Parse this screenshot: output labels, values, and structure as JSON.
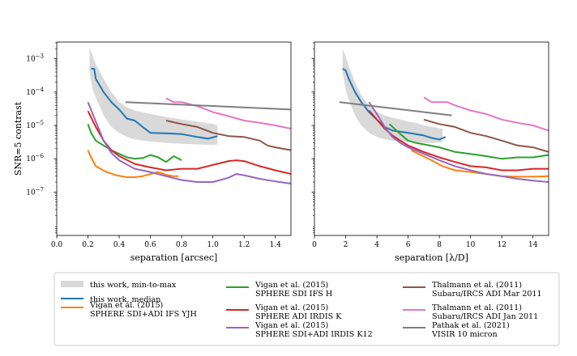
{
  "chart_data": [
    {
      "type": "line",
      "xlabel": "separation [arcsec]",
      "ylabel": "SNR=5 contrast",
      "xlim": [
        0.0,
        1.5
      ],
      "ylim_log10": [
        -8.3,
        -2.5
      ],
      "xticks": [
        0.0,
        0.2,
        0.4,
        0.6,
        0.8,
        1.0,
        1.2,
        1.4
      ],
      "xtick_labels": [
        "0.0",
        "0.2",
        "0.4",
        "0.6",
        "0.8",
        "1.0",
        "1.2",
        "1.4"
      ],
      "yticks_log10": [
        -7,
        -6,
        -5,
        -4,
        -3
      ],
      "ytick_labels": [
        "10−7",
        "10−6",
        "10−5",
        "10−4",
        "10−3"
      ],
      "band": {
        "name": "this work, min-to-max",
        "x": [
          0.21,
          0.23,
          0.25,
          0.3,
          0.35,
          0.4,
          0.45,
          0.5,
          0.55,
          0.6,
          0.7,
          0.8,
          0.9,
          1.0,
          1.03
        ],
        "upper": [
          0.0022,
          0.0012,
          0.0007,
          0.00025,
          0.0001,
          5e-05,
          3.5e-05,
          2.8e-05,
          2.5e-05,
          2.2e-05,
          1.8e-05,
          1.5e-05,
          1.3e-05,
          1.1e-05,
          1e-05
        ],
        "lower": [
          0.0004,
          0.00012,
          7e-05,
          2e-05,
          9e-06,
          6e-06,
          4.5e-06,
          3.8e-06,
          3.5e-06,
          3.3e-06,
          3e-06,
          2.8e-06,
          2.7e-06,
          2.6e-06,
          2.7e-06
        ]
      },
      "series": [
        {
          "name": "this work, median",
          "x": [
            0.22,
            0.24,
            0.25,
            0.3,
            0.35,
            0.4,
            0.45,
            0.5,
            0.55,
            0.6,
            0.7,
            0.8,
            0.9,
            0.97,
            1.03
          ],
          "values": [
            0.0005,
            0.0005,
            0.00025,
            0.0001,
            5e-05,
            3e-05,
            1.6e-05,
            1.4e-05,
            9e-06,
            6e-06,
            5.8e-06,
            5.5e-06,
            4.5e-06,
            4e-06,
            4.8e-06
          ]
        },
        {
          "name": "Vigan et al. (2015) SPHERE SDI+ADI IFS YJH",
          "x": [
            0.2,
            0.22,
            0.25,
            0.28,
            0.32,
            0.38,
            0.45,
            0.5,
            0.55,
            0.6,
            0.65,
            0.7,
            0.75,
            0.78
          ],
          "values": [
            1.8e-06,
            1.1e-06,
            6e-07,
            5e-07,
            4e-07,
            3.2e-07,
            2.8e-07,
            2.8e-07,
            3e-07,
            3.5e-07,
            4e-07,
            3.3e-07,
            3e-07,
            3e-07
          ]
        },
        {
          "name": "Vigan et al. (2015) SPHERE SDI IFS H",
          "x": [
            0.2,
            0.22,
            0.25,
            0.3,
            0.35,
            0.4,
            0.45,
            0.5,
            0.55,
            0.6,
            0.65,
            0.7,
            0.75,
            0.8
          ],
          "values": [
            1.1e-05,
            6e-06,
            3.5e-06,
            2.5e-06,
            1.8e-06,
            1.4e-06,
            1.1e-06,
            1e-06,
            1.05e-06,
            1.3e-06,
            1.1e-06,
            8e-07,
            1.2e-06,
            9e-07
          ]
        },
        {
          "name": "Vigan et al. (2015) SPHERE ADI IRDIS K",
          "x": [
            0.2,
            0.25,
            0.3,
            0.35,
            0.4,
            0.5,
            0.6,
            0.7,
            0.8,
            0.9,
            1.0,
            1.1,
            1.15,
            1.2,
            1.3,
            1.4,
            1.5
          ],
          "values": [
            2.7e-05,
            9e-06,
            3.5e-06,
            1.8e-06,
            1.2e-06,
            7e-07,
            5.5e-07,
            4.5e-07,
            5e-07,
            5e-07,
            6.5e-07,
            8.5e-07,
            9e-07,
            8.5e-07,
            6e-07,
            4.5e-07,
            3.5e-07
          ]
        },
        {
          "name": "Vigan et al. (2015) SPHERE SDI+ADI IRDIS K12",
          "x": [
            0.2,
            0.25,
            0.3,
            0.35,
            0.4,
            0.5,
            0.6,
            0.7,
            0.8,
            0.9,
            1.0,
            1.1,
            1.15,
            1.2,
            1.3,
            1.4,
            1.5
          ],
          "values": [
            5e-05,
            1.3e-05,
            3.5e-06,
            1.5e-06,
            9e-07,
            5e-07,
            4e-07,
            3e-07,
            2.3e-07,
            2e-07,
            2e-07,
            2.7e-07,
            3.5e-07,
            3.2e-07,
            2.5e-07,
            2.1e-07,
            1.8e-07
          ]
        },
        {
          "name": "Thalmann et al. (2011) Subaru/IRCS ADI Mar 2011",
          "x": [
            0.7,
            0.8,
            0.9,
            1.0,
            1.1,
            1.2,
            1.3,
            1.35,
            1.4,
            1.5
          ],
          "values": [
            1.4e-05,
            1.1e-05,
            9e-06,
            6e-06,
            4.8e-06,
            4.5e-06,
            3.5e-06,
            2.5e-06,
            2.2e-06,
            1.8e-06
          ]
        },
        {
          "name": "Thalmann et al. (2011) Subaru/IRCS ADI Jan 2011",
          "x": [
            0.7,
            0.75,
            0.8,
            0.9,
            1.0,
            1.1,
            1.2,
            1.3,
            1.4,
            1.5
          ],
          "values": [
            6.5e-05,
            5e-05,
            5e-05,
            3.8e-05,
            2.5e-05,
            1.9e-05,
            1.4e-05,
            1.2e-05,
            1e-05,
            8e-06
          ]
        },
        {
          "name": "Pathak et al. (2021) VISIR 10 micron",
          "x": [
            0.44,
            1.5
          ],
          "values": [
            5e-05,
            3e-05
          ]
        }
      ]
    },
    {
      "type": "line",
      "xlabel": "separation [λ/D]",
      "ylabel": "",
      "xlim": [
        0,
        15
      ],
      "ylim_log10": [
        -8.3,
        -2.5
      ],
      "xticks": [
        0,
        2,
        4,
        6,
        8,
        10,
        12,
        14
      ],
      "xtick_labels": [
        "0",
        "2",
        "4",
        "6",
        "8",
        "10",
        "12",
        "14"
      ],
      "yticks_log10": [
        -7,
        -6,
        -5,
        -4,
        -3
      ],
      "ytick_labels": [
        "",
        "",
        "",
        "",
        ""
      ],
      "band": {
        "name": "this work, min-to-max",
        "x": [
          1.8,
          2.0,
          2.2,
          2.6,
          3.0,
          3.5,
          4.0,
          4.5,
          5.0,
          5.5,
          6.0,
          6.5,
          7.0,
          7.5,
          8.2
        ],
        "upper": [
          0.002,
          0.0012,
          0.0006,
          0.0002,
          8e-05,
          4e-05,
          2.5e-05,
          2e-05,
          1.7e-05,
          1.5e-05,
          1.3e-05,
          1.2e-05,
          1e-05,
          9e-06,
          8e-06
        ],
        "lower": [
          0.0004,
          0.00012,
          6e-05,
          2e-05,
          1e-05,
          6e-06,
          4.5e-06,
          3.8e-06,
          3.5e-06,
          3.3e-06,
          3.2e-06,
          3.1e-06,
          3e-06,
          3e-06,
          3.1e-06
        ]
      },
      "series": [
        {
          "name": "this work, median",
          "x": [
            1.8,
            2.0,
            2.2,
            2.6,
            3.0,
            3.5,
            4.0,
            4.5,
            5.0,
            5.5,
            6.0,
            6.5,
            7.0,
            7.5,
            8.0,
            8.4
          ],
          "values": [
            0.0005,
            0.00045,
            0.00025,
            0.0001,
            5e-05,
            2.5e-05,
            1.5e-05,
            9e-06,
            7e-06,
            6.5e-06,
            6e-06,
            5.5e-06,
            5e-06,
            4.2e-06,
            3.8e-06,
            4.5e-06
          ]
        },
        {
          "name": "Vigan et al. (2015) SPHERE SDI+ADI IFS YJH",
          "x": [
            6.2,
            6.8,
            7.5,
            8.2,
            9.0,
            10.0,
            11.0,
            12.0,
            13.0,
            14.0,
            15.0
          ],
          "values": [
            1.8e-06,
            1.3e-06,
            9e-07,
            6e-07,
            4.5e-07,
            4e-07,
            3.5e-07,
            3e-07,
            2.9e-07,
            2.9e-07,
            3e-07
          ]
        },
        {
          "name": "Vigan et al. (2015) SPHERE SDI IFS H",
          "x": [
            4.8,
            5.5,
            6.0,
            6.5,
            7.0,
            8.0,
            9.0,
            10.0,
            11.0,
            12.0,
            13.0,
            14.0,
            15.0
          ],
          "values": [
            1.1e-05,
            5.5e-06,
            3.5e-06,
            3e-06,
            2.7e-06,
            2.2e-06,
            1.6e-06,
            1.4e-06,
            1.2e-06,
            1e-06,
            1.1e-06,
            1.1e-06,
            1.3e-06
          ]
        },
        {
          "name": "Vigan et al. (2015) SPHERE ADI IRDIS K",
          "x": [
            3.5,
            4.0,
            4.5,
            5.0,
            5.5,
            6.0,
            7.0,
            8.0,
            9.0,
            10.0,
            11.0,
            12.0,
            13.0,
            14.0,
            15.0
          ],
          "values": [
            2.8e-05,
            1.5e-05,
            8e-06,
            5e-06,
            3.5e-06,
            2.5e-06,
            1.6e-06,
            1.1e-06,
            8e-07,
            6e-07,
            5.5e-07,
            4.5e-07,
            4.5e-07,
            5e-07,
            5e-07
          ]
        },
        {
          "name": "Vigan et al. (2015) SPHERE SDI+ADI IRDIS K12",
          "x": [
            3.5,
            4.0,
            4.5,
            5.0,
            5.5,
            6.0,
            7.0,
            8.0,
            9.0,
            10.0,
            11.0,
            12.0,
            13.0,
            14.0,
            15.0
          ],
          "values": [
            5e-05,
            2.2e-05,
            9e-06,
            4.5e-06,
            3e-06,
            2.2e-06,
            1.4e-06,
            9e-07,
            6e-07,
            4.5e-07,
            3.5e-07,
            3e-07,
            2.5e-07,
            2.2e-07,
            2e-07
          ]
        },
        {
          "name": "Thalmann et al. (2011) Subaru/IRCS ADI Mar 2011",
          "x": [
            7.0,
            8.0,
            9.0,
            10.0,
            11.0,
            12.0,
            13.0,
            14.0,
            15.0
          ],
          "values": [
            1.5e-05,
            1.1e-05,
            9e-06,
            6e-06,
            4.8e-06,
            3.5e-06,
            2.5e-06,
            2.2e-06,
            1.6e-06
          ]
        },
        {
          "name": "Thalmann et al. (2011) Subaru/IRCS ADI Jan 2011",
          "x": [
            7.0,
            7.5,
            8.5,
            9.0,
            10.0,
            11.0,
            12.0,
            13.0,
            14.0,
            15.0
          ],
          "values": [
            7e-05,
            5e-05,
            5e-05,
            4e-05,
            2.8e-05,
            2.2e-05,
            1.5e-05,
            1.2e-05,
            1e-05,
            7e-06
          ]
        },
        {
          "name": "Pathak et al. (2021) VISIR 10 micron",
          "x": [
            1.6,
            8.8
          ],
          "values": [
            5e-05,
            2e-05
          ]
        }
      ]
    }
  ],
  "legend": {
    "placement": "bottom",
    "entries": [
      {
        "kind": "patch",
        "color": "#d9d9d9",
        "lines": [
          "this work, min-to-max"
        ]
      },
      {
        "kind": "line",
        "color": "#1f77b4",
        "lines": [
          "this work, median"
        ]
      },
      {
        "kind": "line",
        "color": "#ff7f0e",
        "lines": [
          "Vigan et al. (2015)",
          "SPHERE SDI+ADI IFS YJH"
        ]
      },
      {
        "kind": "line",
        "color": "#2ca02c",
        "lines": [
          "Vigan et al. (2015)",
          "SPHERE SDI IFS H"
        ]
      },
      {
        "kind": "line",
        "color": "#d62728",
        "lines": [
          "Vigan et al. (2015)",
          "SPHERE ADI IRDIS K"
        ]
      },
      {
        "kind": "line",
        "color": "#9467bd",
        "lines": [
          "Vigan et al. (2015)",
          "SPHERE SDI+ADI IRDIS K12"
        ]
      },
      {
        "kind": "line",
        "color": "#8c564b",
        "lines": [
          "Thalmann et al. (2011)",
          "Subaru/IRCS ADI Mar 2011"
        ]
      },
      {
        "kind": "line",
        "color": "#e377c2",
        "lines": [
          "Thalmann et al. (2011)",
          "Subaru/IRCS ADI Jan 2011"
        ]
      },
      {
        "kind": "line",
        "color": "#7f7f7f",
        "lines": [
          "Pathak et al. (2021)",
          "VISIR 10 micron"
        ]
      }
    ]
  },
  "colors": {
    "band": "#d9d9d9",
    "series": [
      "#1f77b4",
      "#ff7f0e",
      "#2ca02c",
      "#d62728",
      "#9467bd",
      "#8c564b",
      "#e377c2",
      "#7f7f7f"
    ]
  }
}
